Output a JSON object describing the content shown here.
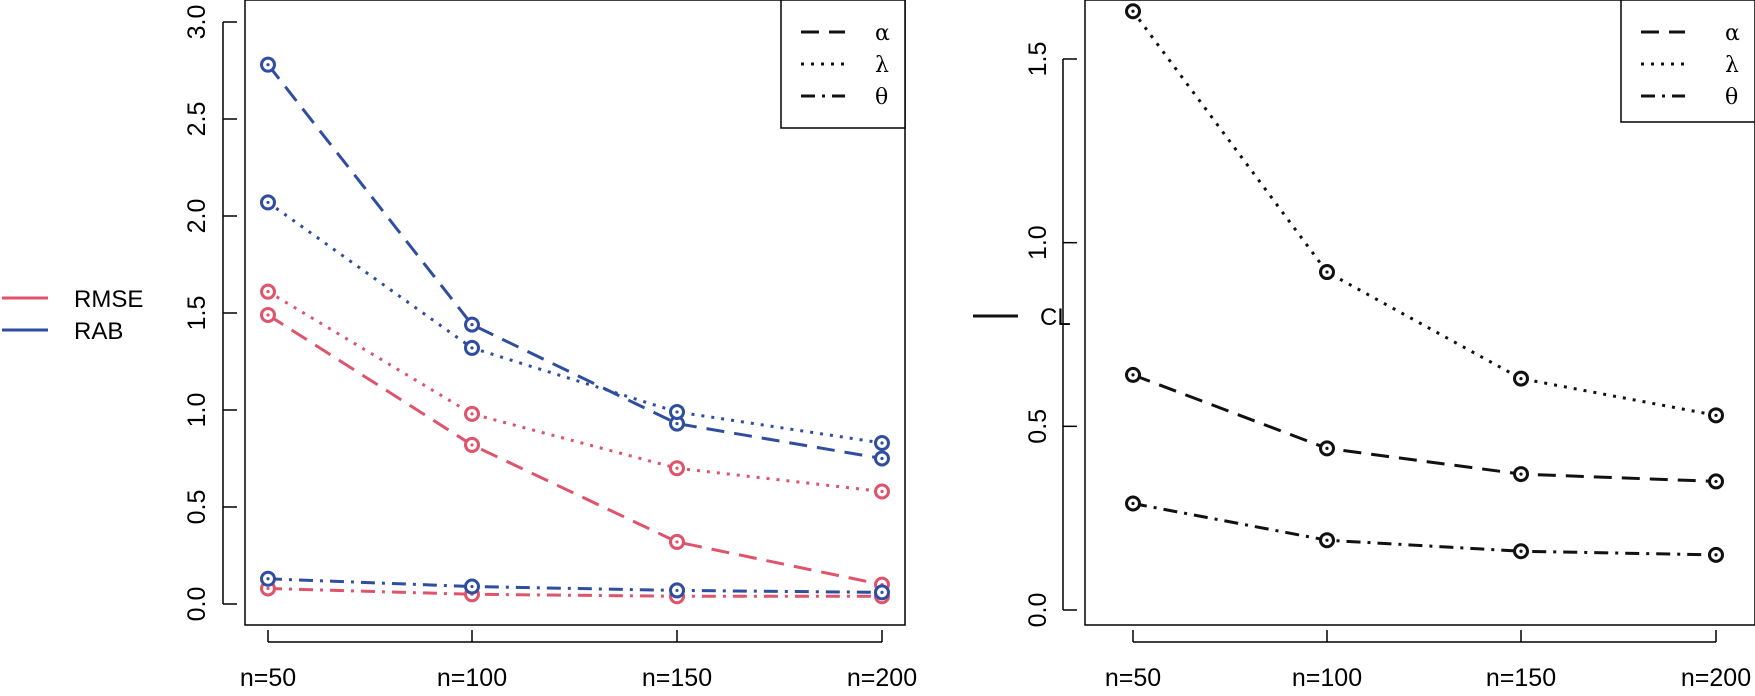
{
  "colors": {
    "rmse": "#df536b",
    "rab": "#2f4ea0",
    "cl": "#111111"
  },
  "outer_legend_left": [
    {
      "label": "RMSE",
      "color": "#df536b"
    },
    {
      "label": "RAB",
      "color": "#2f4ea0"
    }
  ],
  "outer_legend_right": [
    {
      "label": "CL",
      "color": "#111111"
    }
  ],
  "chart_data": [
    {
      "type": "line",
      "categories": [
        "n=50",
        "n=100",
        "n=150",
        "n=200"
      ],
      "ylim": [
        0,
        3.0
      ],
      "yticks": [
        "0.0",
        "0.5",
        "1.0",
        "1.5",
        "2.0",
        "2.5",
        "3.0"
      ],
      "legend": {
        "position": "top-right",
        "entries": [
          {
            "symbol": "α",
            "linestyle": "dashed"
          },
          {
            "symbol": "λ",
            "linestyle": "dotted"
          },
          {
            "symbol": "θ",
            "linestyle": "dashdot"
          }
        ]
      },
      "series": [
        {
          "group": "RMSE",
          "param": "α",
          "linestyle": "dashed",
          "color": "#df536b",
          "values": [
            1.49,
            0.82,
            0.32,
            0.1
          ]
        },
        {
          "group": "RMSE",
          "param": "λ",
          "linestyle": "dotted",
          "color": "#df536b",
          "values": [
            1.61,
            0.98,
            0.7,
            0.58
          ]
        },
        {
          "group": "RMSE",
          "param": "θ",
          "linestyle": "dashdot",
          "color": "#df536b",
          "values": [
            0.08,
            0.05,
            0.04,
            0.04
          ]
        },
        {
          "group": "RAB",
          "param": "α",
          "linestyle": "dashed",
          "color": "#2f4ea0",
          "values": [
            2.78,
            1.44,
            0.93,
            0.75
          ]
        },
        {
          "group": "RAB",
          "param": "λ",
          "linestyle": "dotted",
          "color": "#2f4ea0",
          "values": [
            2.07,
            1.32,
            0.99,
            0.83
          ]
        },
        {
          "group": "RAB",
          "param": "θ",
          "linestyle": "dashdot",
          "color": "#2f4ea0",
          "values": [
            0.13,
            0.09,
            0.07,
            0.06
          ]
        }
      ]
    },
    {
      "type": "line",
      "categories": [
        "n=50",
        "n=100",
        "n=150",
        "n=200"
      ],
      "ylim": [
        0,
        1.65
      ],
      "yticks": [
        "0.0",
        "0.5",
        "1.0",
        "1.5"
      ],
      "legend": {
        "position": "top-right",
        "entries": [
          {
            "symbol": "α",
            "linestyle": "dashed"
          },
          {
            "symbol": "λ",
            "linestyle": "dotted"
          },
          {
            "symbol": "θ",
            "linestyle": "dashdot"
          }
        ]
      },
      "series": [
        {
          "group": "CL",
          "param": "α",
          "linestyle": "dashed",
          "color": "#111111",
          "values": [
            0.64,
            0.44,
            0.37,
            0.35
          ]
        },
        {
          "group": "CL",
          "param": "λ",
          "linestyle": "dotted",
          "color": "#111111",
          "values": [
            1.63,
            0.92,
            0.63,
            0.53
          ]
        },
        {
          "group": "CL",
          "param": "θ",
          "linestyle": "dashdot",
          "color": "#111111",
          "values": [
            0.29,
            0.19,
            0.16,
            0.15
          ]
        }
      ]
    }
  ]
}
